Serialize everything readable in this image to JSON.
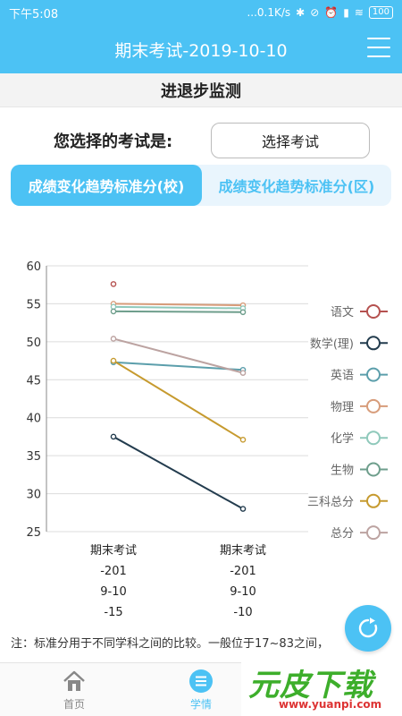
{
  "status_bar": {
    "time": "下午5:08",
    "network_speed": "...0.1K/s",
    "battery": "100"
  },
  "header": {
    "title": "期末考试-2019-10-10"
  },
  "page_subtitle": "进退步监测",
  "exam_select": {
    "label": "您选择的考试是:",
    "button": "选择考试"
  },
  "tabs": [
    {
      "label": "成绩变化趋势标准分(校)",
      "active": true
    },
    {
      "label": "成绩变化趋势标准分(区)",
      "active": false
    }
  ],
  "chart_data": {
    "type": "line",
    "x_categories": [
      [
        "期末考试",
        "-201",
        "9-10",
        "-15"
      ],
      [
        "期末考试",
        "-201",
        "9-10",
        "-10"
      ]
    ],
    "y_ticks": [
      25,
      30,
      35,
      40,
      45,
      50,
      55,
      60
    ],
    "ylim": [
      25,
      60
    ],
    "grid": true,
    "legend_position": "right",
    "series": [
      {
        "name": "语文",
        "color": "#b5514f",
        "values": [
          57.6,
          null
        ]
      },
      {
        "name": "数学(理)",
        "color": "#233c4e",
        "values": [
          37.5,
          28.0
        ]
      },
      {
        "name": "英语",
        "color": "#5b9eab",
        "values": [
          47.3,
          46.3
        ]
      },
      {
        "name": "物理",
        "color": "#d79c7a",
        "values": [
          55.0,
          54.8
        ]
      },
      {
        "name": "化学",
        "color": "#8fc9bb",
        "values": [
          54.6,
          54.4
        ]
      },
      {
        "name": "生物",
        "color": "#6e9e8c",
        "values": [
          54.0,
          53.9
        ]
      },
      {
        "name": "三科总分",
        "color": "#c69a2e",
        "values": [
          47.5,
          37.1
        ]
      },
      {
        "name": "总分",
        "color": "#bca3a1",
        "values": [
          50.4,
          45.9
        ]
      }
    ]
  },
  "note": "注：标准分用于不同学科之间的比较。一般位于17~83之间，",
  "bottom_nav": [
    {
      "label": "首页",
      "active": false
    },
    {
      "label": "学情",
      "active": true
    }
  ],
  "watermark": {
    "text": "元皮下载",
    "url": "www.yuanpi.com"
  }
}
